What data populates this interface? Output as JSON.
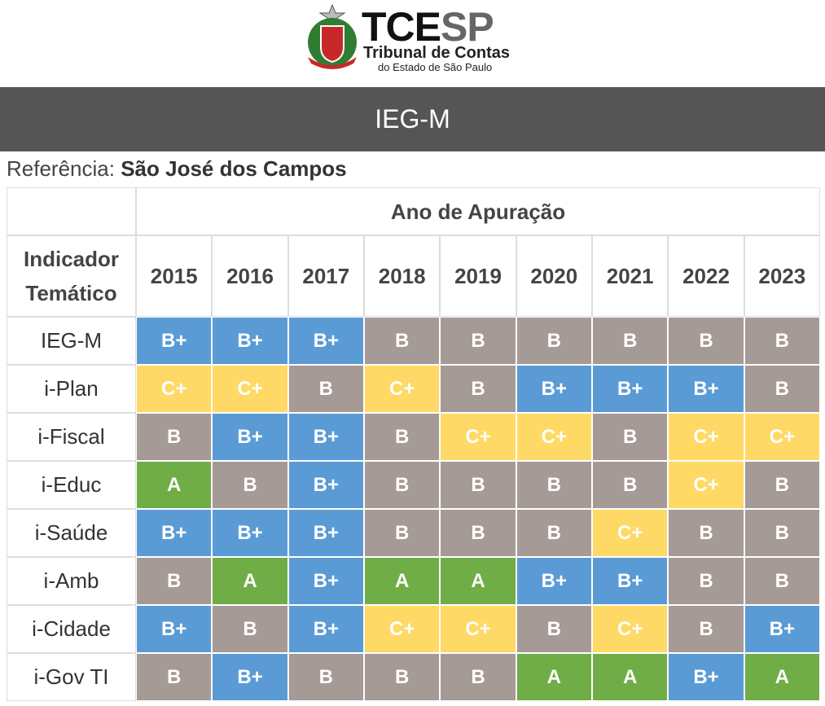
{
  "header": {
    "logo_left": "TCE",
    "logo_right": "SP",
    "line1": "Tribunal de Contas",
    "line2": "do Estado de São Paulo"
  },
  "title": "IEG-M",
  "reference": {
    "label": "Referência:",
    "value": "São José dos Campos"
  },
  "table": {
    "group_header": "Ano de Apuração",
    "row_header": "Indicador Temático",
    "columns": [
      "2015",
      "2016",
      "2017",
      "2018",
      "2019",
      "2020",
      "2021",
      "2022",
      "2023"
    ],
    "grade_colors": {
      "A": "#70ad47",
      "B+": "#5b9bd5",
      "B": "#a69a96",
      "C+": "#ffd966"
    },
    "rows": [
      {
        "label": "IEG-M",
        "grades": [
          "B+",
          "B+",
          "B+",
          "B",
          "B",
          "B",
          "B",
          "B",
          "B"
        ]
      },
      {
        "label": "i-Plan",
        "grades": [
          "C+",
          "C+",
          "B",
          "C+",
          "B",
          "B+",
          "B+",
          "B+",
          "B"
        ]
      },
      {
        "label": "i-Fiscal",
        "grades": [
          "B",
          "B+",
          "B+",
          "B",
          "C+",
          "C+",
          "B",
          "C+",
          "C+"
        ]
      },
      {
        "label": "i-Educ",
        "grades": [
          "A",
          "B",
          "B+",
          "B",
          "B",
          "B",
          "B",
          "C+",
          "B"
        ]
      },
      {
        "label": "i-Saúde",
        "grades": [
          "B+",
          "B+",
          "B+",
          "B",
          "B",
          "B",
          "C+",
          "B",
          "B"
        ]
      },
      {
        "label": "i-Amb",
        "grades": [
          "B",
          "A",
          "B+",
          "A",
          "A",
          "B+",
          "B+",
          "B",
          "B"
        ]
      },
      {
        "label": "i-Cidade",
        "grades": [
          "B+",
          "B",
          "B+",
          "C+",
          "C+",
          "B",
          "C+",
          "B",
          "B+"
        ]
      },
      {
        "label": "i-Gov TI",
        "grades": [
          "B",
          "B+",
          "B",
          "B",
          "B",
          "A",
          "A",
          "B+",
          "A"
        ]
      }
    ]
  }
}
